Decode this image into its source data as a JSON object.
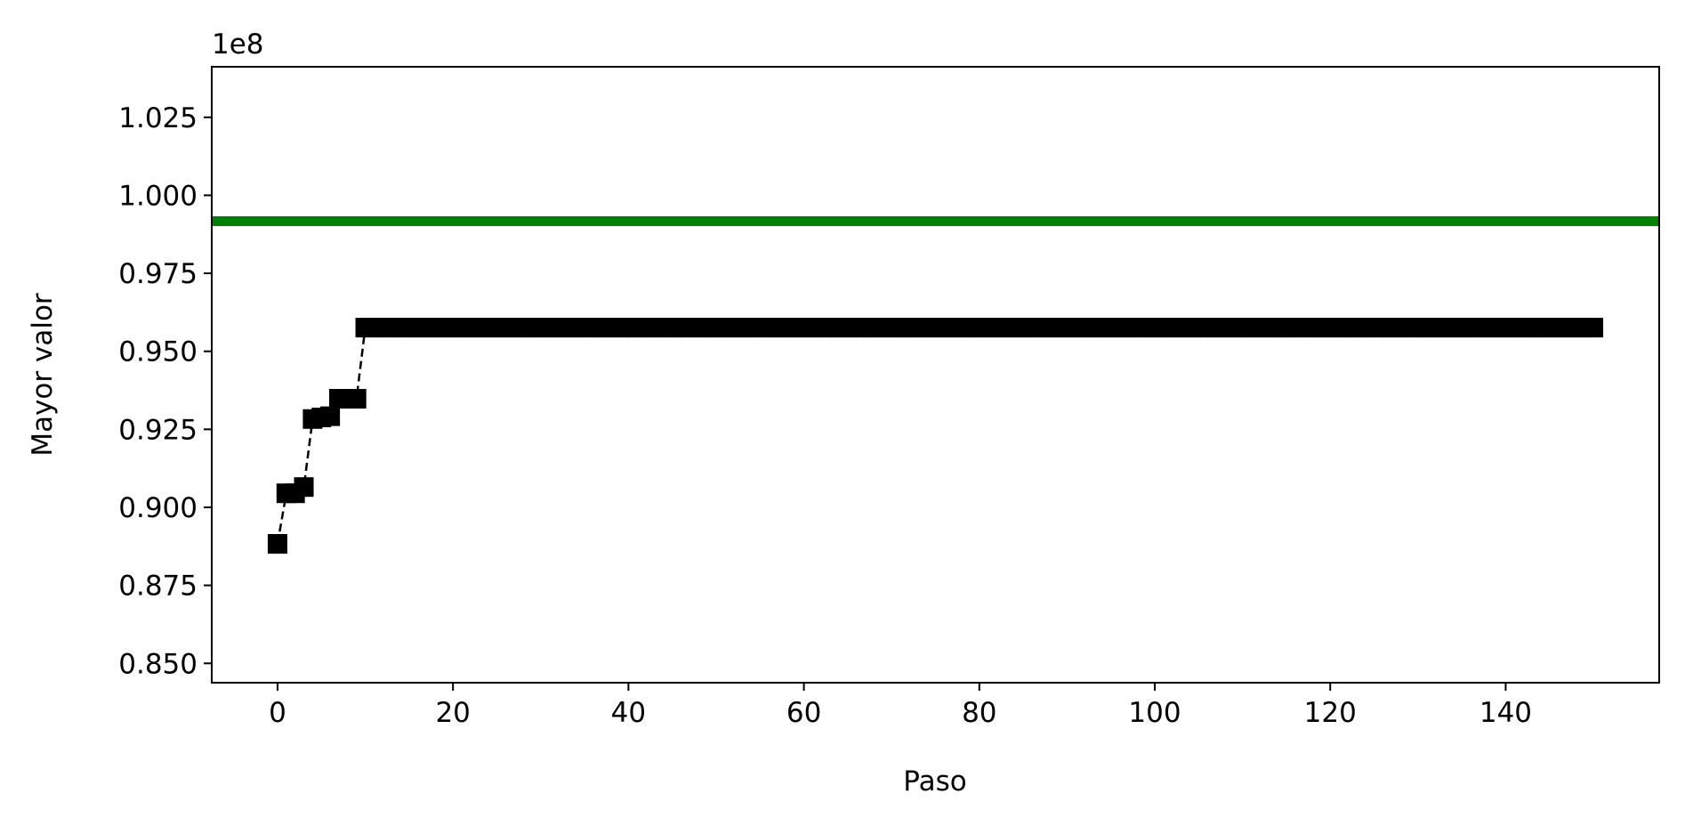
{
  "chart_data": {
    "type": "line",
    "title": "",
    "xlabel": "Paso",
    "ylabel": "Mayor valor",
    "y_offset_label": "1e8",
    "xlim": [
      -7.5,
      157.5
    ],
    "ylim": [
      0.8438,
      1.0412
    ],
    "x_ticks": [
      0,
      20,
      40,
      60,
      80,
      100,
      120,
      140
    ],
    "x_tick_labels": [
      "0",
      "20",
      "40",
      "60",
      "80",
      "100",
      "120",
      "140"
    ],
    "y_ticks": [
      0.85,
      0.875,
      0.9,
      0.925,
      0.95,
      0.975,
      1.0,
      1.025
    ],
    "y_tick_labels": [
      "0.850",
      "0.875",
      "0.900",
      "0.925",
      "0.950",
      "0.975",
      "1.000",
      "1.025"
    ],
    "grid": false,
    "series": [
      {
        "color": "#000000",
        "marker": "square",
        "line_style": "dashed",
        "x": [
          0,
          1,
          2,
          3,
          4,
          5,
          6,
          7,
          8,
          9,
          10,
          11,
          12,
          13,
          14,
          15,
          16,
          17,
          18,
          19,
          20,
          21,
          22,
          23,
          24,
          25,
          26,
          27,
          28,
          29,
          30,
          31,
          32,
          33,
          34,
          35,
          36,
          37,
          38,
          39,
          40,
          41,
          42,
          43,
          44,
          45,
          46,
          47,
          48,
          49,
          50,
          51,
          52,
          53,
          54,
          55,
          56,
          57,
          58,
          59,
          60,
          61,
          62,
          63,
          64,
          65,
          66,
          67,
          68,
          69,
          70,
          71,
          72,
          73,
          74,
          75,
          76,
          77,
          78,
          79,
          80,
          81,
          82,
          83,
          84,
          85,
          86,
          87,
          88,
          89,
          90,
          91,
          92,
          93,
          94,
          95,
          96,
          97,
          98,
          99,
          100,
          101,
          102,
          103,
          104,
          105,
          106,
          107,
          108,
          109,
          110,
          111,
          112,
          113,
          114,
          115,
          116,
          117,
          118,
          119,
          120,
          121,
          122,
          123,
          124,
          125,
          126,
          127,
          128,
          129,
          130,
          131,
          132,
          133,
          134,
          135,
          136,
          137,
          138,
          139,
          140,
          141,
          142,
          143,
          144,
          145,
          146,
          147,
          148,
          149,
          150
        ],
        "y": [
          0.8883,
          0.9045,
          0.9045,
          0.9065,
          0.9283,
          0.9288,
          0.9292,
          0.9348,
          0.9348,
          0.9348,
          0.9576,
          0.9576,
          0.9576,
          0.9576,
          0.9576,
          0.9576,
          0.9576,
          0.9576,
          0.9576,
          0.9576,
          0.9576,
          0.9576,
          0.9576,
          0.9576,
          0.9576,
          0.9576,
          0.9576,
          0.9576,
          0.9576,
          0.9576,
          0.9576,
          0.9576,
          0.9576,
          0.9576,
          0.9576,
          0.9576,
          0.9576,
          0.9576,
          0.9576,
          0.9576,
          0.9576,
          0.9576,
          0.9576,
          0.9576,
          0.9576,
          0.9576,
          0.9576,
          0.9576,
          0.9576,
          0.9576,
          0.9576,
          0.9576,
          0.9576,
          0.9576,
          0.9576,
          0.9576,
          0.9576,
          0.9576,
          0.9576,
          0.9576,
          0.9576,
          0.9576,
          0.9576,
          0.9576,
          0.9576,
          0.9576,
          0.9576,
          0.9576,
          0.9576,
          0.9576,
          0.9576,
          0.9576,
          0.9576,
          0.9576,
          0.9576,
          0.9576,
          0.9576,
          0.9576,
          0.9576,
          0.9576,
          0.9576,
          0.9576,
          0.9576,
          0.9576,
          0.9576,
          0.9576,
          0.9576,
          0.9576,
          0.9576,
          0.9576,
          0.9576,
          0.9576,
          0.9576,
          0.9576,
          0.9576,
          0.9576,
          0.9576,
          0.9576,
          0.9576,
          0.9576,
          0.9576,
          0.9576,
          0.9576,
          0.9576,
          0.9576,
          0.9576,
          0.9576,
          0.9576,
          0.9576,
          0.9576,
          0.9576,
          0.9576,
          0.9576,
          0.9576,
          0.9576,
          0.9576,
          0.9576,
          0.9576,
          0.9576,
          0.9576,
          0.9576,
          0.9576,
          0.9576,
          0.9576,
          0.9576,
          0.9576,
          0.9576,
          0.9576,
          0.9576,
          0.9576,
          0.9576,
          0.9576,
          0.9576,
          0.9576,
          0.9576,
          0.9576,
          0.9576,
          0.9576,
          0.9576,
          0.9576,
          0.9576,
          0.9576,
          0.9576,
          0.9576,
          0.9576,
          0.9576,
          0.9576,
          0.9576,
          0.9576,
          0.9576,
          0.9576
        ]
      },
      {
        "color": "#008000",
        "marker": "none",
        "line_style": "solid",
        "kind": "horizontal-reference-line",
        "y_constant": 0.9917
      }
    ]
  }
}
